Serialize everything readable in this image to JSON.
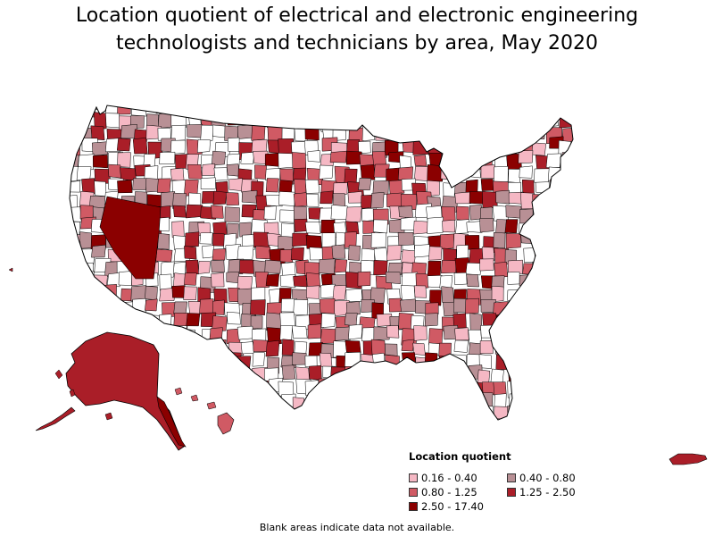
{
  "title": {
    "line1": "Location quotient of electrical and electronic engineering",
    "line2": "technologists and technicians by area, May 2020"
  },
  "legend": {
    "title": "Location quotient",
    "items": [
      {
        "label": "0.16 - 0.40",
        "color": "#f5b8c4"
      },
      {
        "label": "0.40 - 0.80",
        "color": "#b89095"
      },
      {
        "label": "0.80 - 1.25",
        "color": "#d05a64"
      },
      {
        "label": "1.25 - 2.50",
        "color": "#aa1e28"
      },
      {
        "label": "2.50 - 17.40",
        "color": "#8b0000"
      }
    ]
  },
  "footnote": "Blank areas indicate data not available.",
  "colors": {
    "blank": "#ffffff",
    "border": "#000000"
  }
}
